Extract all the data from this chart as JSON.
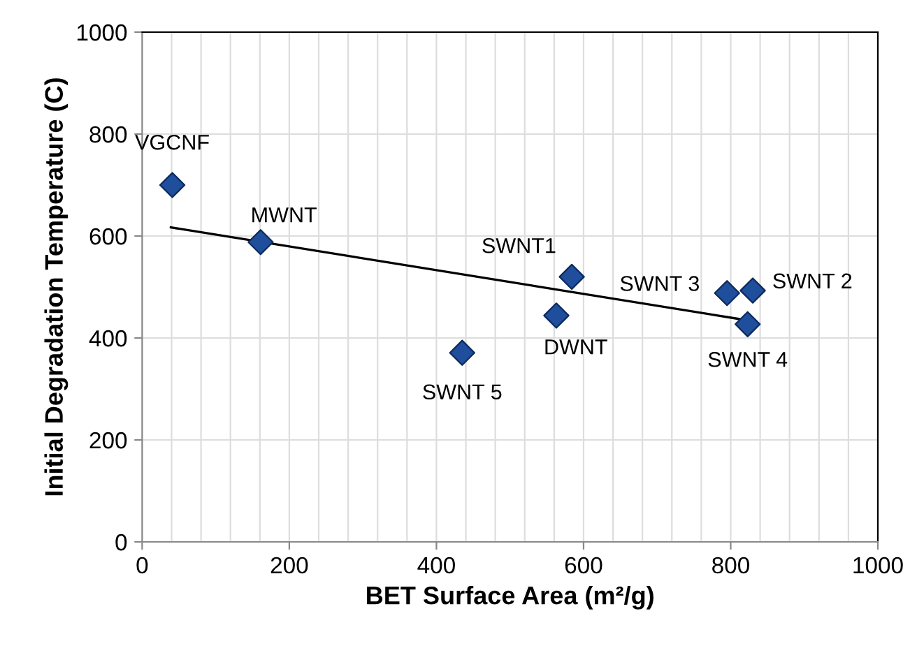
{
  "chart_data": {
    "type": "scatter",
    "xlabel": "BET Surface Area (m²/g)",
    "ylabel": "Initial Degradation Temperature (C)",
    "series": [
      {
        "color": "#1f4e9c",
        "marker": "diamond",
        "x": [
          41,
          161,
          435,
          584,
          563,
          795,
          830,
          823
        ],
        "values": [
          700,
          588,
          371,
          520,
          444,
          488,
          493,
          427
        ]
      },
      {
        "type": "line",
        "color": "#000000",
        "marker": "none",
        "line_style": "solid",
        "x": [
          39,
          817
        ],
        "values": [
          617,
          436
        ]
      }
    ],
    "annotations": [
      {
        "text": "VGCNF",
        "x": 41,
        "y": 700
      },
      {
        "text": "MWNT",
        "x": 161,
        "y": 588
      },
      {
        "text": "SWNT 5",
        "x": 435,
        "y": 371
      },
      {
        "text": "SWNT1",
        "x": 584,
        "y": 520
      },
      {
        "text": "DWNT",
        "x": 563,
        "y": 444
      },
      {
        "text": "SWNT 3",
        "x": 795,
        "y": 488
      },
      {
        "text": "SWNT 2",
        "x": 830,
        "y": 493
      },
      {
        "text": "SWNT 4",
        "x": 823,
        "y": 427
      }
    ],
    "xlim": [
      0,
      1000
    ],
    "ylim": [
      0,
      1000
    ],
    "xticks": [
      0,
      {
        "value": 40,
        "label": null
      },
      {
        "value": 80,
        "label": null
      },
      {
        "value": 120,
        "label": null
      },
      {
        "value": 160,
        "label": null
      },
      200,
      {
        "value": 240,
        "label": null
      },
      {
        "value": 280,
        "label": null
      },
      {
        "value": 320,
        "label": null
      },
      {
        "value": 360,
        "label": null
      },
      400,
      {
        "value": 440,
        "label": null
      },
      {
        "value": 480,
        "label": null
      },
      {
        "value": 520,
        "label": null
      },
      {
        "value": 560,
        "label": null
      },
      600,
      {
        "value": 640,
        "label": null
      },
      {
        "value": 680,
        "label": null
      },
      {
        "value": 720,
        "label": null
      },
      {
        "value": 760,
        "label": null
      },
      800,
      {
        "value": 840,
        "label": null
      },
      {
        "value": 880,
        "label": null
      },
      {
        "value": 920,
        "label": null
      },
      {
        "value": 960,
        "label": null
      },
      1000
    ],
    "yticks": [
      0,
      200,
      400,
      600,
      800,
      1000
    ],
    "grid": true,
    "legend": false
  }
}
